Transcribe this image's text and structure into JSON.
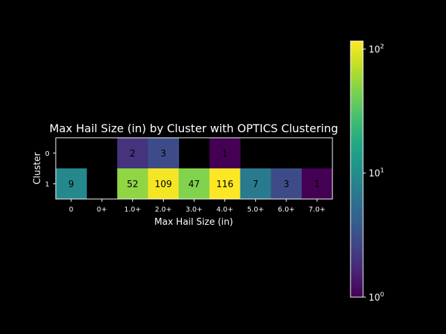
{
  "chart_data": {
    "type": "heatmap",
    "title": "Max Hail Size (in) by Cluster with OPTICS Clustering",
    "xlabel": "Max Hail Size (in)",
    "ylabel": "Cluster",
    "x_categories": [
      "0",
      "0+",
      "1.0+",
      "2.0+",
      "3.0+",
      "4.0+",
      "5.0+",
      "6.0+",
      "7.0+"
    ],
    "y_categories": [
      "0",
      "1"
    ],
    "values": [
      [
        null,
        null,
        2,
        3,
        null,
        1,
        null,
        null,
        null
      ],
      [
        9,
        null,
        52,
        109,
        47,
        116,
        7,
        3,
        1
      ]
    ],
    "colorbar": {
      "scale": "log",
      "range": [
        1,
        116
      ],
      "ticks": [
        {
          "value": 1,
          "base": "10",
          "exp": "0"
        },
        {
          "value": 10,
          "base": "10",
          "exp": "1"
        },
        {
          "value": 100,
          "base": "10",
          "exp": "2"
        }
      ],
      "colormap": "viridis"
    },
    "grid": false,
    "missing_color": "#000000"
  }
}
